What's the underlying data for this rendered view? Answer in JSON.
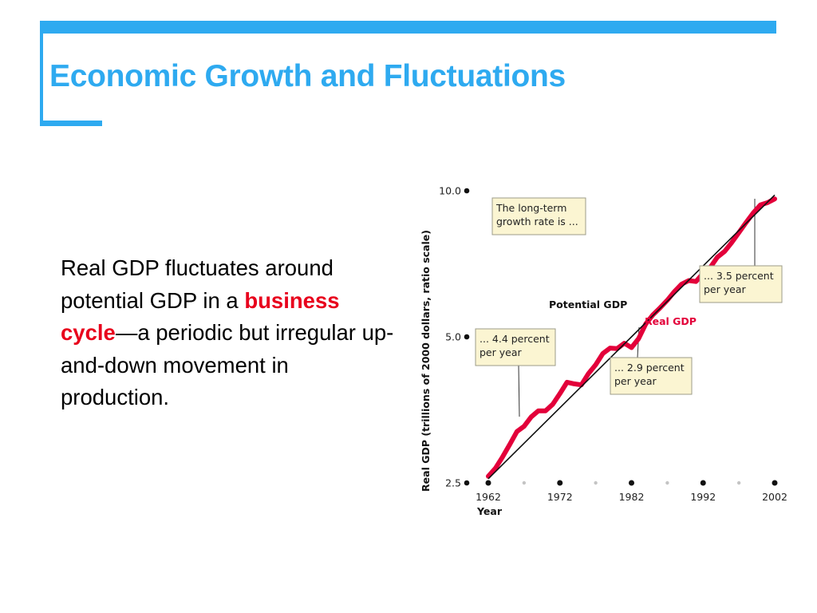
{
  "slide": {
    "title": "Economic Growth and Fluctuations",
    "body_before": "Real GDP fluctuates around potential GDP in a ",
    "body_highlight": "business cycle",
    "body_after": "—a periodic but irregular up-and-down movement in production."
  },
  "colors": {
    "accent": "#2eaaf0",
    "highlight": "#e8001c",
    "real_gdp": "#e3003a",
    "potential_gdp": "#111111",
    "callout_fill": "#fbf5d2",
    "callout_stroke": "#9c9c8a"
  },
  "chart_data": {
    "type": "line",
    "title": "",
    "xlabel": "Year",
    "ylabel": "Real GDP (trillions of 2000 dollars, ratio scale)",
    "y_scale": "log",
    "xlim": [
      1960,
      2004
    ],
    "ylim": [
      2.5,
      10.0
    ],
    "x_ticks": [
      {
        "value": 1962,
        "label": "1962"
      },
      {
        "value": 1972,
        "label": "1972"
      },
      {
        "value": 1982,
        "label": "1982"
      },
      {
        "value": 1992,
        "label": "1992"
      },
      {
        "value": 2002,
        "label": "2002"
      }
    ],
    "x_minor_ticks": [
      1967,
      1977,
      1987,
      1997
    ],
    "y_ticks": [
      {
        "value": 2.5,
        "label": "2.5"
      },
      {
        "value": 5.0,
        "label": "5.0"
      },
      {
        "value": 10.0,
        "label": "10.0"
      }
    ],
    "series": [
      {
        "name": "Real GDP",
        "x": [
          1962,
          1963,
          1964,
          1965,
          1966,
          1967,
          1968,
          1969,
          1970,
          1971,
          1972,
          1973,
          1974,
          1975,
          1976,
          1977,
          1978,
          1979,
          1980,
          1981,
          1982,
          1983,
          1984,
          1985,
          1986,
          1987,
          1988,
          1989,
          1990,
          1991,
          1992,
          1993,
          1994,
          1995,
          1996,
          1997,
          1998,
          1999,
          2000,
          2001,
          2002
        ],
        "y": [
          2.58,
          2.68,
          2.83,
          3.0,
          3.19,
          3.27,
          3.42,
          3.52,
          3.52,
          3.63,
          3.82,
          4.03,
          4.0,
          3.98,
          4.2,
          4.38,
          4.62,
          4.74,
          4.73,
          4.85,
          4.75,
          4.96,
          5.32,
          5.55,
          5.74,
          5.95,
          6.2,
          6.42,
          6.53,
          6.5,
          6.76,
          6.95,
          7.3,
          7.5,
          7.82,
          8.2,
          8.6,
          9.0,
          9.35,
          9.45,
          9.62
        ]
      },
      {
        "name": "Potential GDP",
        "x": [
          1962,
          1982,
          2002
        ],
        "y": [
          2.55,
          5.0,
          9.8
        ]
      }
    ],
    "annotations": [
      {
        "id": "long-term",
        "lines": [
          "The long-term",
          "growth rate is ..."
        ]
      },
      {
        "id": "rate-44",
        "lines": [
          "... 4.4 percent",
          "per year"
        ]
      },
      {
        "id": "rate-29",
        "lines": [
          "... 2.9 percent",
          "per year"
        ]
      },
      {
        "id": "rate-35",
        "lines": [
          "... 3.5 percent",
          "per year"
        ]
      }
    ]
  }
}
